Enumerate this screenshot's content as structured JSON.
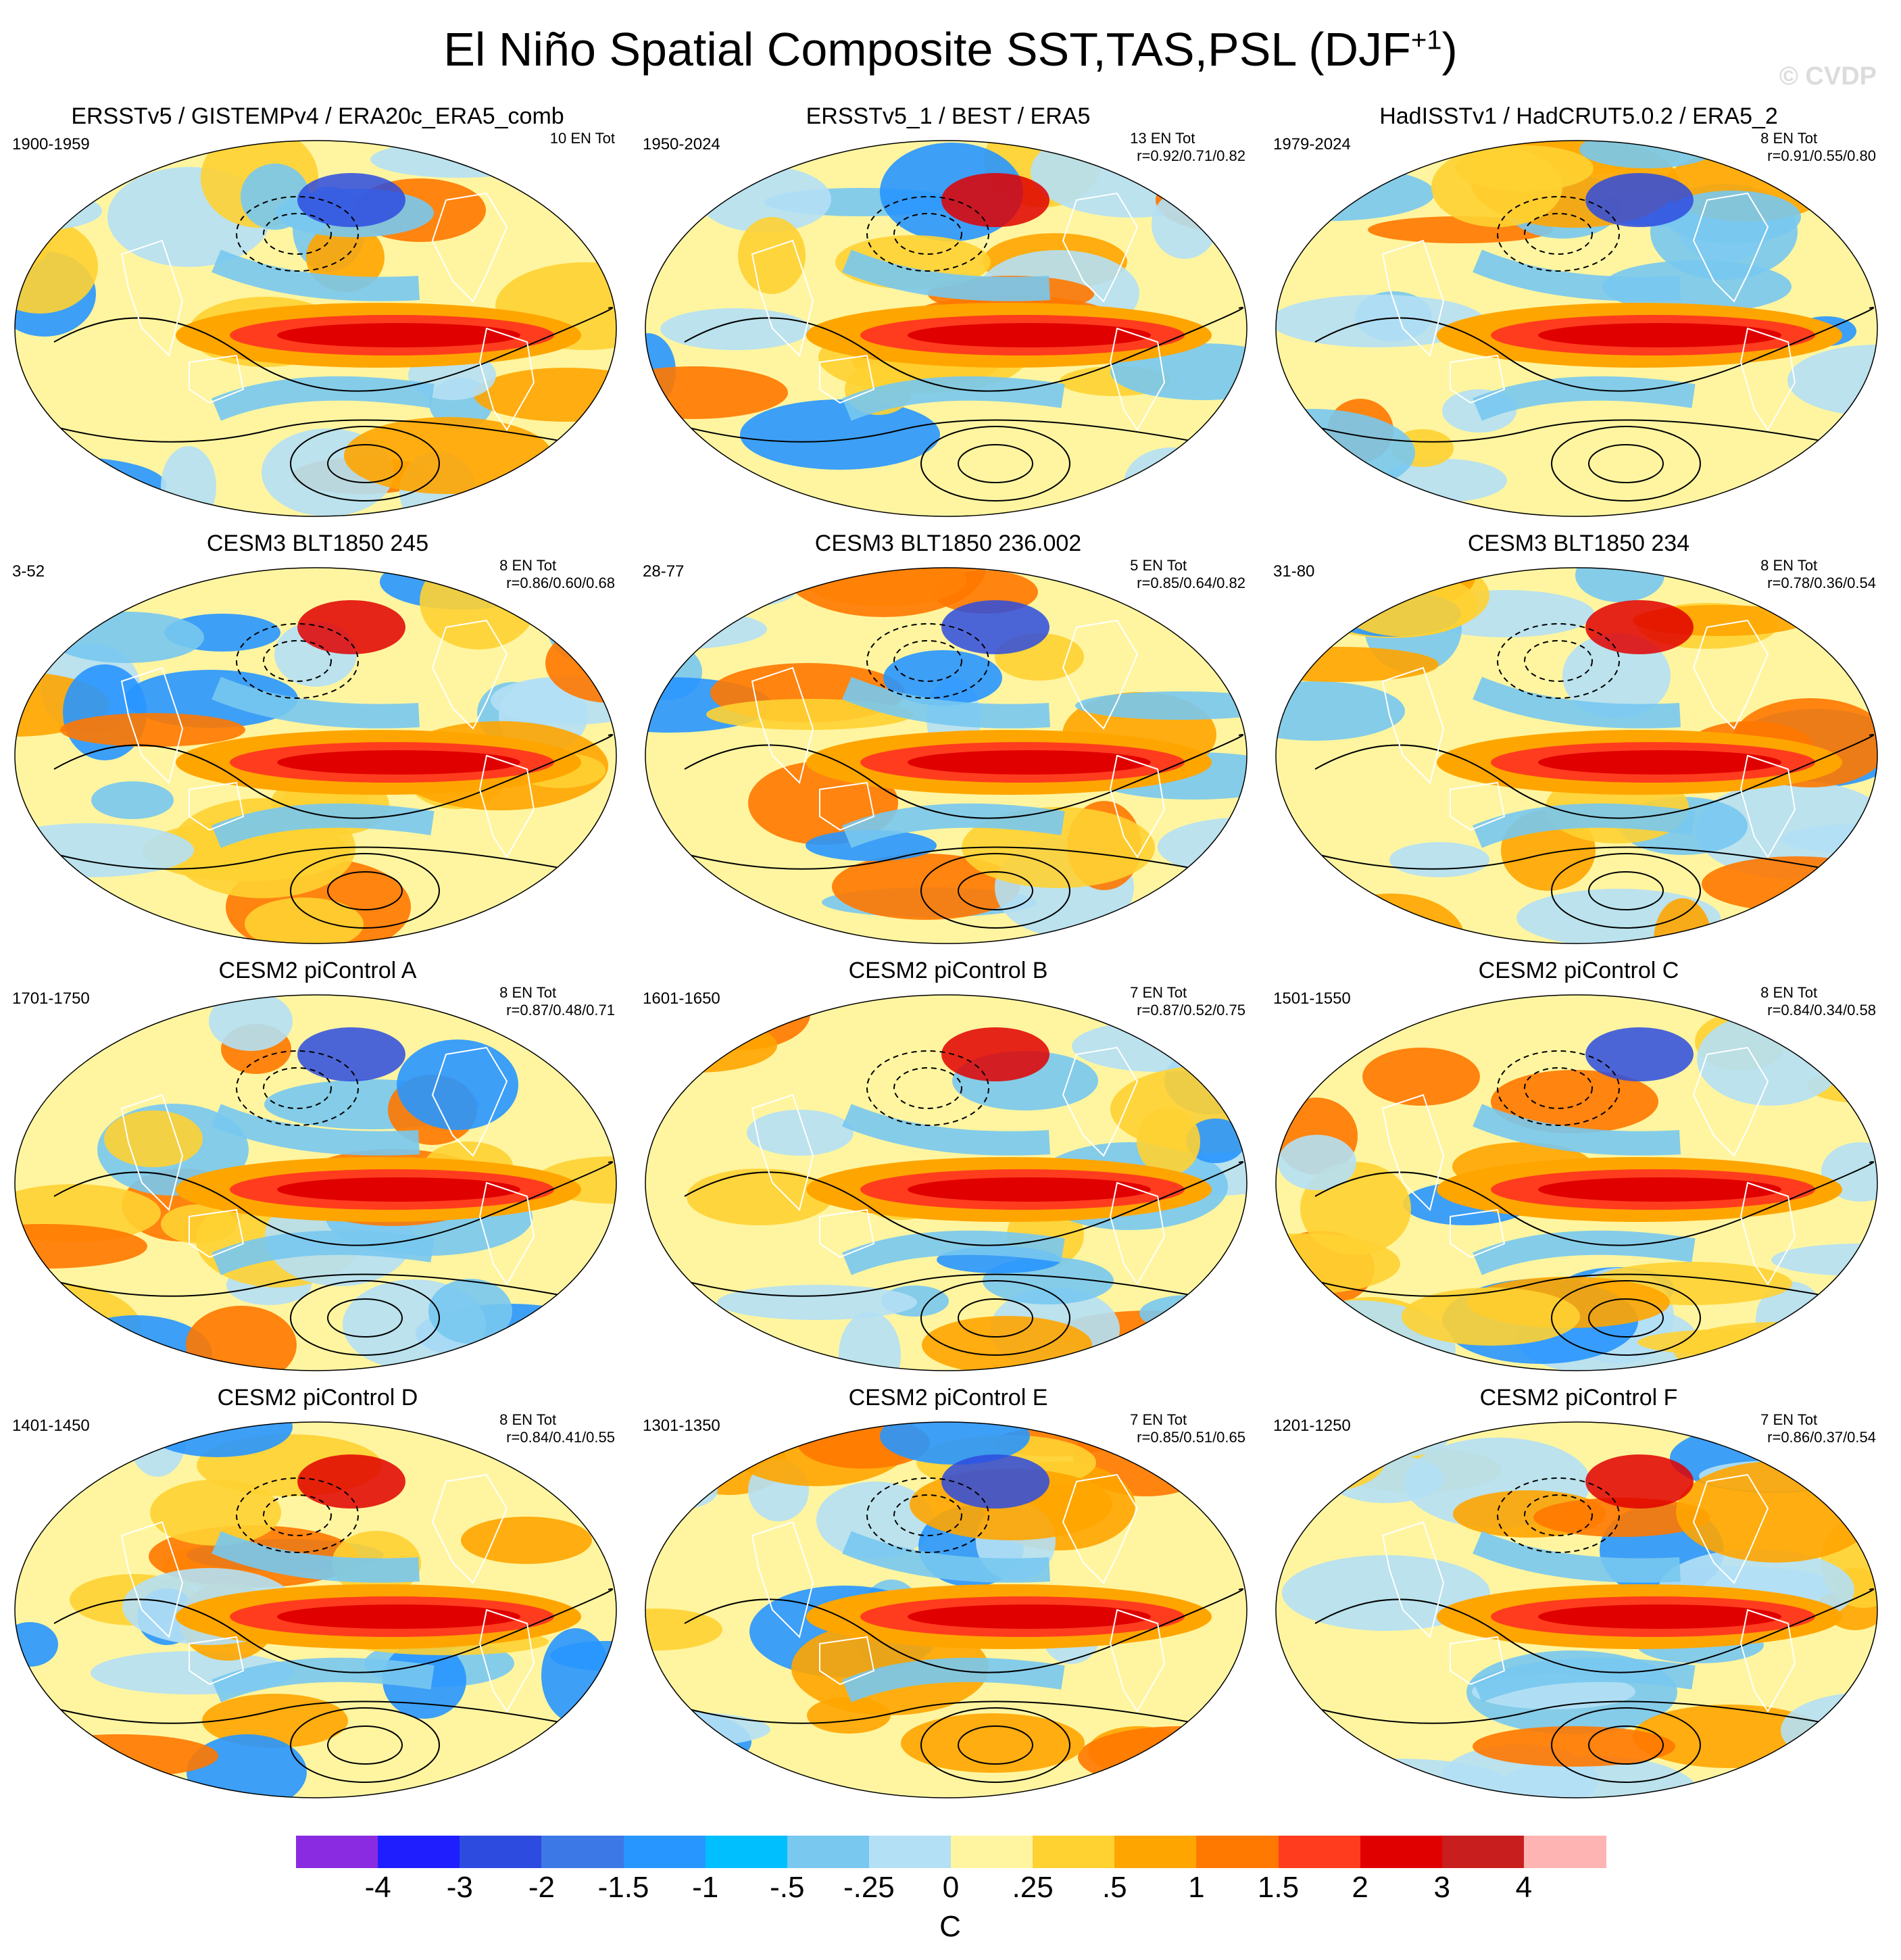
{
  "figure": {
    "title": "El Niño Spatial Composite SST,TAS,PSL (DJF",
    "title_superscript": "+1",
    "title_close": ")",
    "watermark": "© CVDP"
  },
  "panels": [
    {
      "title": "ERSSTv5 / GISTEMPv4 / ERA20c_ERA5_comb",
      "period": "1900-1959",
      "count": "10 EN Tot",
      "stats": ""
    },
    {
      "title": "ERSSTv5_1 / BEST / ERA5",
      "period": "1950-2024",
      "count": "13 EN Tot",
      "stats": "r=0.92/0.71/0.82"
    },
    {
      "title": "HadISSTv1 / HadCRUT5.0.2 / ERA5_2",
      "period": "1979-2024",
      "count": "8 EN Tot",
      "stats": "r=0.91/0.55/0.80"
    },
    {
      "title": "CESM3 BLT1850 245",
      "period": "3-52",
      "count": "8 EN Tot",
      "stats": "r=0.86/0.60/0.68"
    },
    {
      "title": "CESM3 BLT1850 236.002",
      "period": "28-77",
      "count": "5 EN Tot",
      "stats": "r=0.85/0.64/0.82"
    },
    {
      "title": "CESM3 BLT1850 234",
      "period": "31-80",
      "count": "8 EN Tot",
      "stats": "r=0.78/0.36/0.54"
    },
    {
      "title": "CESM2 piControl A",
      "period": "1701-1750",
      "count": "8 EN Tot",
      "stats": "r=0.87/0.48/0.71"
    },
    {
      "title": "CESM2 piControl B",
      "period": "1601-1650",
      "count": "7 EN Tot",
      "stats": "r=0.87/0.52/0.75"
    },
    {
      "title": "CESM2 piControl C",
      "period": "1501-1550",
      "count": "8 EN Tot",
      "stats": "r=0.84/0.34/0.58"
    },
    {
      "title": "CESM2 piControl D",
      "period": "1401-1450",
      "count": "8 EN Tot",
      "stats": "r=0.84/0.41/0.55"
    },
    {
      "title": "CESM2 piControl E",
      "period": "1301-1350",
      "count": "7 EN Tot",
      "stats": "r=0.85/0.51/0.65"
    },
    {
      "title": "CESM2 piControl F",
      "period": "1201-1250",
      "count": "7 EN Tot",
      "stats": "r=0.86/0.37/0.54"
    }
  ],
  "colorbar": {
    "unit": "C",
    "labels": [
      "-4",
      "-3",
      "-2",
      "-1.5",
      "-1",
      "-.5",
      "-.25",
      "0",
      ".25",
      ".5",
      "1",
      "1.5",
      "2",
      "3",
      "4"
    ],
    "colors": [
      "#8a2be2",
      "#1e1eff",
      "#2d4bdf",
      "#3c78e6",
      "#2896ff",
      "#00bfff",
      "#78c8f0",
      "#b4e0f5",
      "#fff5a0",
      "#ffd232",
      "#ffa500",
      "#ff7800",
      "#ff3c1e",
      "#e00000",
      "#c81e1e",
      "#ffb4b4"
    ]
  }
}
